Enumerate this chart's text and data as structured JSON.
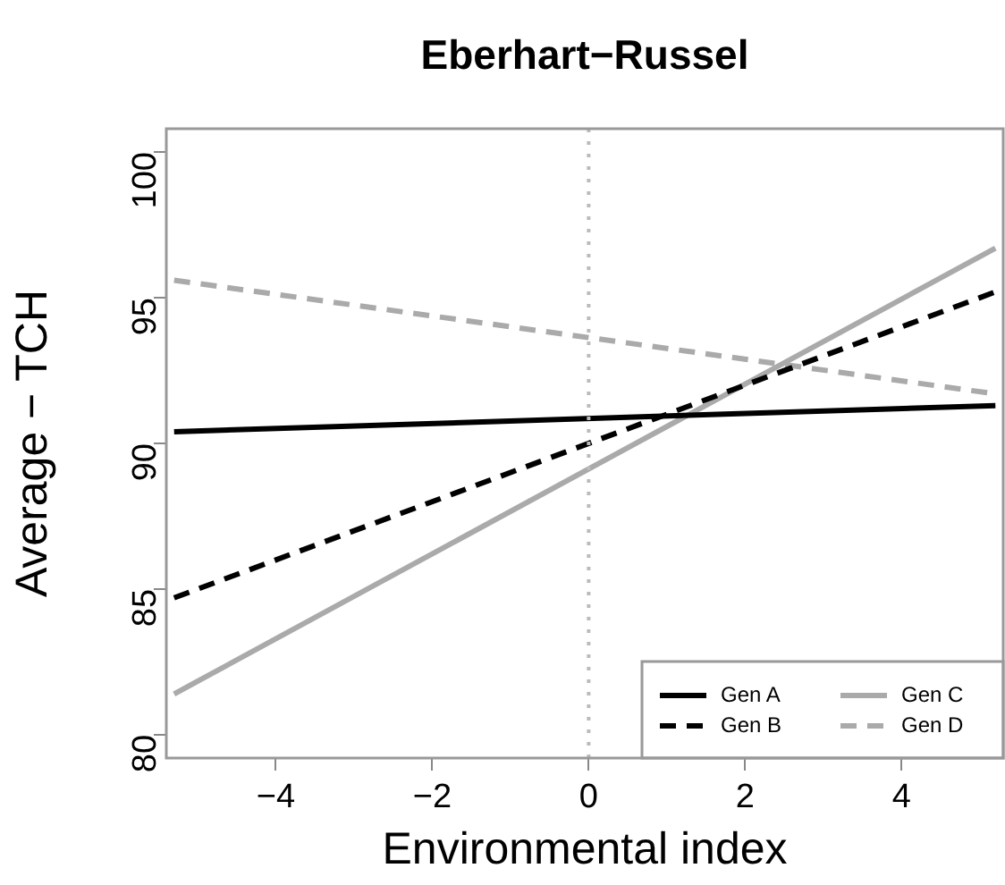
{
  "chart_data": {
    "type": "line",
    "title": "Eberhart−Russel",
    "xlabel": "Environmental index",
    "ylabel": "Average − TCH",
    "x": [
      -5.3,
      5.2
    ],
    "xlim": [
      -5.4,
      5.3
    ],
    "ylim": [
      79.2,
      100.8
    ],
    "xticks": [
      {
        "value": -4,
        "label": "−4"
      },
      {
        "value": -2,
        "label": "−2"
      },
      0,
      2,
      4
    ],
    "yticks": [
      80,
      85,
      90,
      95,
      100
    ],
    "series": [
      {
        "name": "Gen A",
        "color": "#000000",
        "line_style": "solid",
        "values": [
          90.4,
          91.3
        ]
      },
      {
        "name": "Gen B",
        "color": "#000000",
        "line_style": "dashed",
        "values": [
          84.7,
          95.2
        ]
      },
      {
        "name": "Gen C",
        "color": "#aaaaaa",
        "line_style": "solid",
        "values": [
          81.4,
          96.7
        ]
      },
      {
        "name": "Gen D",
        "color": "#aaaaaa",
        "line_style": "dashed",
        "values": [
          95.6,
          91.7
        ]
      }
    ],
    "ref_lines": [
      {
        "axis": "x",
        "value": 0,
        "color": "#bbbbbb",
        "line_style": "dotted"
      }
    ],
    "legend": "bottom right",
    "grid": false,
    "marker": "none"
  }
}
